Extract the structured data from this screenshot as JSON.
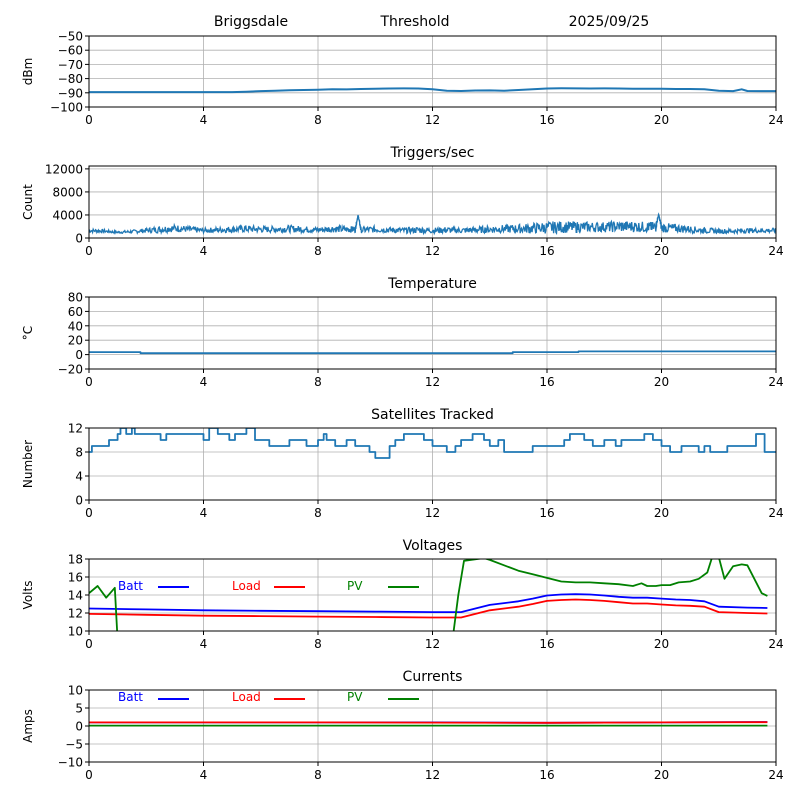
{
  "header": {
    "station": "Briggsdale",
    "mode": "Threshold",
    "date": "2025/09/25"
  },
  "chart_data": [
    {
      "id": "signal",
      "type": "line",
      "title": "",
      "xlabel": "",
      "ylabel": "dBm",
      "xlim": [
        0,
        24
      ],
      "ylim": [
        -100,
        -50
      ],
      "xticks": [
        "0",
        "4",
        "8",
        "12",
        "16",
        "20",
        "24"
      ],
      "yticks": [
        "−50",
        "−60",
        "−70",
        "−80",
        "−90",
        "−100"
      ],
      "ytick_values": [
        -50,
        -60,
        -70,
        -80,
        -90,
        -100
      ],
      "grid": true,
      "series": [
        {
          "name": "signal",
          "color": "#1f77b4",
          "x": [
            0,
            1,
            2,
            3,
            4,
            5,
            5.5,
            6,
            6.5,
            7,
            7.5,
            8,
            8.5,
            9,
            9.5,
            10,
            10.5,
            11,
            11.5,
            12,
            12.5,
            13,
            13.5,
            14,
            14.5,
            15,
            15.5,
            16,
            16.5,
            17,
            17.5,
            18,
            18.5,
            19,
            19.5,
            20,
            20.5,
            21,
            21.5,
            22,
            22.5,
            22.8,
            23,
            23.5,
            24
          ],
          "y": [
            -89.5,
            -89.5,
            -89.5,
            -89.5,
            -89.5,
            -89.5,
            -89.2,
            -88.8,
            -88.5,
            -88.2,
            -88,
            -87.8,
            -87.5,
            -87.6,
            -87.3,
            -87.2,
            -87,
            -86.9,
            -87,
            -87.5,
            -88.5,
            -88.7,
            -88.4,
            -88.3,
            -88.5,
            -88,
            -87.5,
            -87,
            -86.8,
            -86.9,
            -87,
            -86.9,
            -87,
            -87.1,
            -87.2,
            -87.2,
            -87.3,
            -87.3,
            -87.5,
            -88.5,
            -88.8,
            -87.5,
            -88.7,
            -88.8,
            -88.8
          ]
        }
      ]
    },
    {
      "id": "triggers",
      "type": "line",
      "title": "Triggers/sec",
      "xlabel": "",
      "ylabel": "Count",
      "xlim": [
        0,
        24
      ],
      "ylim": [
        0,
        12500
      ],
      "xticks": [
        "0",
        "4",
        "8",
        "12",
        "16",
        "20",
        "24"
      ],
      "yticks": [
        "12000",
        "8000",
        "4000",
        "0"
      ],
      "ytick_values": [
        12000,
        8000,
        4000,
        0
      ],
      "grid": true,
      "series": [
        {
          "name": "triggers",
          "color": "#1f77b4",
          "x": [
            0,
            0.5,
            1,
            1.5,
            2,
            2.5,
            3,
            3.5,
            4,
            4.5,
            5,
            5.5,
            6,
            6.5,
            7,
            7.5,
            8,
            8.5,
            9,
            9.3,
            9.4,
            9.5,
            10,
            10.5,
            11,
            11.5,
            12,
            12.5,
            13,
            13.5,
            14,
            14.5,
            15,
            15.5,
            16,
            16.5,
            17,
            17.5,
            18,
            18.5,
            19,
            19.5,
            19.8,
            19.9,
            20,
            20.5,
            21,
            21.5,
            22,
            22.5,
            23,
            23.5,
            24
          ],
          "y": [
            1300,
            1200,
            1000,
            1100,
            1300,
            1500,
            1700,
            1500,
            1300,
            1400,
            1500,
            1600,
            1500,
            1500,
            1600,
            1500,
            1400,
            1600,
            1500,
            1500,
            4000,
            1400,
            1500,
            1400,
            1300,
            1400,
            1300,
            1400,
            1300,
            1400,
            1500,
            1600,
            1600,
            1700,
            1800,
            1900,
            1900,
            1900,
            1900,
            2000,
            2000,
            1900,
            1900,
            4100,
            1800,
            1700,
            1500,
            1300,
            1200,
            1200,
            1300,
            1300,
            1300
          ],
          "spread": [
            500,
            400,
            300,
            400,
            600,
            900,
            900,
            800,
            600,
            700,
            800,
            900,
            800,
            800,
            900,
            800,
            700,
            900,
            800,
            800,
            0,
            800,
            800,
            700,
            700,
            800,
            700,
            800,
            700,
            800,
            900,
            1000,
            1100,
            1300,
            1500,
            1500,
            1400,
            1300,
            1300,
            1400,
            1400,
            1300,
            1300,
            0,
            1200,
            1100,
            900,
            700,
            600,
            600,
            600,
            600,
            600
          ]
        }
      ]
    },
    {
      "id": "temperature",
      "type": "line",
      "title": "Temperature",
      "xlabel": "",
      "ylabel": "°C",
      "xlim": [
        0,
        24
      ],
      "ylim": [
        -20,
        80
      ],
      "xticks": [
        "0",
        "4",
        "8",
        "12",
        "16",
        "20",
        "24"
      ],
      "yticks": [
        "80",
        "60",
        "40",
        "20",
        "0",
        "−20"
      ],
      "ytick_values": [
        80,
        60,
        40,
        20,
        0,
        -20
      ],
      "grid": true,
      "series": [
        {
          "name": "temperature",
          "color": "#1f77b4",
          "x": [
            0,
            1.8,
            1.8,
            14.8,
            14.8,
            17.1,
            17.1,
            24
          ],
          "y": [
            3.5,
            3.5,
            2,
            2,
            3.5,
            3.5,
            4.5,
            4.5
          ]
        }
      ]
    },
    {
      "id": "satellites",
      "type": "line",
      "title": "Satellites Tracked",
      "xlabel": "",
      "ylabel": "Number",
      "xlim": [
        0,
        24
      ],
      "ylim": [
        0,
        12
      ],
      "xticks": [
        "0",
        "4",
        "8",
        "12",
        "16",
        "20",
        "24"
      ],
      "yticks": [
        "12",
        "8",
        "4",
        "0"
      ],
      "ytick_values": [
        12,
        8,
        4,
        0
      ],
      "grid": true,
      "step": true,
      "series": [
        {
          "name": "satellites",
          "color": "#1f77b4",
          "x": [
            0,
            0.1,
            0.4,
            0.7,
            1.0,
            1.1,
            1.3,
            1.5,
            1.6,
            1.8,
            2.0,
            2.5,
            2.7,
            3.0,
            3.5,
            4.0,
            4.2,
            4.5,
            4.9,
            5.1,
            5.5,
            5.8,
            6.3,
            6.8,
            7.0,
            7.4,
            7.6,
            8.0,
            8.2,
            8.3,
            8.6,
            9.0,
            9.3,
            9.8,
            10.0,
            10.5,
            10.7,
            11.0,
            11.5,
            11.7,
            12.0,
            12.2,
            12.5,
            12.8,
            13.0,
            13.4,
            13.8,
            14.0,
            14.3,
            14.5,
            15.0,
            15.5,
            15.8,
            16.3,
            16.6,
            16.8,
            17.3,
            17.6,
            18.0,
            18.4,
            18.6,
            19.0,
            19.4,
            19.7,
            20.0,
            20.3,
            20.7,
            21.0,
            21.3,
            21.5,
            21.7,
            22.0,
            22.3,
            22.6,
            23.0,
            23.3,
            23.6,
            24
          ],
          "y": [
            8,
            9,
            9,
            10,
            11,
            12,
            11,
            12,
            11,
            11,
            11,
            10,
            11,
            11,
            11,
            10,
            12,
            11,
            10,
            11,
            12,
            10,
            9,
            9,
            10,
            10,
            9,
            10,
            11,
            10,
            9,
            10,
            9,
            8,
            7,
            9,
            10,
            11,
            11,
            10,
            9,
            9,
            8,
            9,
            10,
            11,
            10,
            9,
            10,
            8,
            8,
            9,
            9,
            9,
            10,
            11,
            10,
            9,
            10,
            9,
            10,
            10,
            11,
            10,
            9,
            8,
            9,
            9,
            8,
            9,
            8,
            8,
            9,
            9,
            9,
            11,
            8,
            8
          ]
        }
      ]
    },
    {
      "id": "voltages",
      "type": "line",
      "title": "Voltages",
      "xlabel": "",
      "ylabel": "Volts",
      "xlim": [
        0,
        24
      ],
      "ylim": [
        10,
        18
      ],
      "xticks": [
        "0",
        "4",
        "8",
        "12",
        "16",
        "20",
        "24"
      ],
      "yticks": [
        "18",
        "16",
        "14",
        "12",
        "10"
      ],
      "ytick_values": [
        18,
        16,
        14,
        12,
        10
      ],
      "grid": true,
      "legend": {
        "placement": "top-left",
        "entries": [
          {
            "label": "Batt",
            "color": "#0000ff"
          },
          {
            "label": "Load",
            "color": "#ff0000"
          },
          {
            "label": "PV",
            "color": "#008000"
          }
        ]
      },
      "series": [
        {
          "name": "Batt",
          "color": "#0000ff",
          "x": [
            0,
            2,
            4,
            6,
            8,
            10,
            12,
            13,
            13.5,
            14,
            14.5,
            15,
            15.5,
            16,
            16.5,
            17,
            17.5,
            18,
            18.5,
            19,
            19.5,
            20,
            20.5,
            21,
            21.5,
            22,
            23,
            23.7
          ],
          "y": [
            12.5,
            12.4,
            12.3,
            12.25,
            12.2,
            12.15,
            12.1,
            12.1,
            12.5,
            12.9,
            13.1,
            13.3,
            13.6,
            13.95,
            14.05,
            14.1,
            14.05,
            13.95,
            13.8,
            13.7,
            13.7,
            13.6,
            13.5,
            13.45,
            13.3,
            12.7,
            12.6,
            12.55
          ]
        },
        {
          "name": "Load",
          "color": "#ff0000",
          "x": [
            0,
            2,
            4,
            6,
            8,
            10,
            12,
            13,
            13.5,
            14,
            14.5,
            15,
            15.5,
            16,
            16.5,
            17,
            17.5,
            18,
            18.5,
            19,
            19.5,
            20,
            20.5,
            21,
            21.5,
            22,
            23,
            23.7
          ],
          "y": [
            11.9,
            11.8,
            11.7,
            11.65,
            11.6,
            11.55,
            11.5,
            11.5,
            11.9,
            12.3,
            12.5,
            12.7,
            13.0,
            13.35,
            13.45,
            13.5,
            13.45,
            13.35,
            13.2,
            13.05,
            13.05,
            12.95,
            12.85,
            12.8,
            12.7,
            12.1,
            12.0,
            11.95
          ]
        },
        {
          "name": "PV",
          "color": "#008000",
          "x": [
            0,
            0.3,
            0.6,
            0.9,
            1.0,
            12.7,
            12.9,
            13.1,
            13.8,
            14.0,
            14.5,
            15.0,
            15.5,
            16.0,
            16.5,
            17.0,
            17.5,
            18.0,
            18.5,
            19.0,
            19.3,
            19.5,
            19.8,
            20.0,
            20.3,
            20.6,
            21.0,
            21.3,
            21.6,
            21.8,
            22.0,
            22.2,
            22.5,
            22.8,
            23.0,
            23.5,
            23.7
          ],
          "y": [
            14.2,
            15.0,
            13.7,
            14.8,
            9.0,
            9.0,
            14.0,
            17.8,
            18.1,
            17.9,
            17.3,
            16.7,
            16.3,
            15.9,
            15.5,
            15.4,
            15.4,
            15.3,
            15.2,
            15.0,
            15.3,
            15.0,
            15.0,
            15.1,
            15.1,
            15.4,
            15.5,
            15.8,
            16.5,
            18.5,
            18.2,
            15.8,
            17.2,
            17.4,
            17.3,
            14.2,
            13.9
          ]
        }
      ]
    },
    {
      "id": "currents",
      "type": "line",
      "title": "Currents",
      "xlabel": "",
      "ylabel": "Amps",
      "xlim": [
        0,
        24
      ],
      "ylim": [
        -10,
        10
      ],
      "xticks": [
        "0",
        "4",
        "8",
        "12",
        "16",
        "20",
        "24"
      ],
      "yticks": [
        "10",
        "5",
        "0",
        "−5",
        "−10"
      ],
      "ytick_values": [
        10,
        5,
        0,
        -5,
        -10
      ],
      "grid": true,
      "legend": {
        "placement": "top-left",
        "entries": [
          {
            "label": "Batt",
            "color": "#0000ff"
          },
          {
            "label": "Load",
            "color": "#ff0000"
          },
          {
            "label": "PV",
            "color": "#008000"
          }
        ]
      },
      "series": [
        {
          "name": "Batt",
          "color": "#0000ff",
          "x": [
            0,
            4,
            8,
            12,
            16,
            20,
            23.7
          ],
          "y": [
            1.0,
            1.0,
            1.0,
            1.0,
            0.9,
            1.0,
            1.1
          ]
        },
        {
          "name": "Load",
          "color": "#ff0000",
          "x": [
            0,
            4,
            8,
            12,
            16,
            20,
            23.7
          ],
          "y": [
            1.0,
            1.0,
            1.0,
            0.95,
            0.9,
            1.0,
            1.05
          ]
        },
        {
          "name": "PV",
          "color": "#008000",
          "x": [
            0,
            4,
            8,
            12,
            16,
            20,
            23.7
          ],
          "y": [
            0.1,
            0.1,
            0.1,
            0.1,
            0.1,
            0.1,
            0.1
          ]
        }
      ]
    }
  ]
}
